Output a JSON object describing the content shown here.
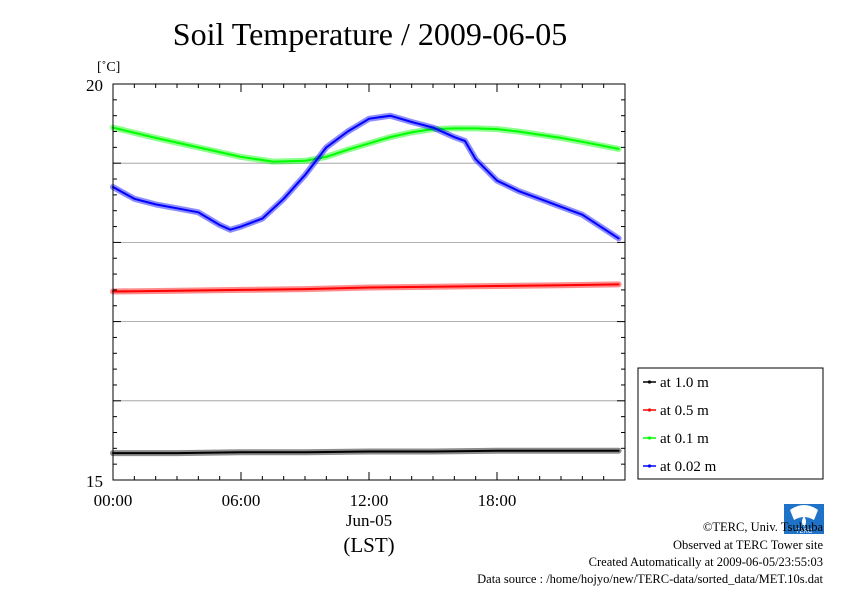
{
  "chart_data": {
    "type": "line",
    "title": "Soil Temperature / 2009-06-05",
    "yunit": "[˚C]",
    "ylim": [
      15,
      20
    ],
    "ytick_labels": [
      "20",
      "15"
    ],
    "yticks_minor": [
      15,
      16,
      17,
      18,
      19,
      20
    ],
    "xlim": [
      0,
      24
    ],
    "xticks": [
      {
        "hour": 0,
        "label": "00:00"
      },
      {
        "hour": 6,
        "label": "06:00"
      },
      {
        "hour": 12,
        "label": "12:00"
      },
      {
        "hour": 18,
        "label": "18:00"
      }
    ],
    "date_label": "Jun-05",
    "xlabel": "(LST)",
    "grid": true,
    "legend_placement": "right",
    "series": [
      {
        "name": "at 1.0 m",
        "color": "#000000",
        "x": [
          0,
          3,
          6,
          9,
          12,
          15,
          18,
          21,
          23.7
        ],
        "y": [
          15.34,
          15.34,
          15.35,
          15.35,
          15.36,
          15.36,
          15.37,
          15.37,
          15.37
        ]
      },
      {
        "name": "at 0.5 m",
        "color": "#ff0000",
        "x": [
          0,
          3,
          6,
          9,
          12,
          15,
          18,
          21,
          23.7
        ],
        "y": [
          17.38,
          17.39,
          17.4,
          17.41,
          17.43,
          17.44,
          17.45,
          17.46,
          17.47
        ]
      },
      {
        "name": "at 0.1 m",
        "color": "#00ff00",
        "x": [
          0,
          2,
          4,
          6,
          7.5,
          9,
          10,
          11,
          12,
          13,
          14,
          15,
          16,
          17,
          18,
          19,
          20,
          21,
          22,
          23.7
        ],
        "y": [
          19.45,
          19.32,
          19.2,
          19.08,
          19.02,
          19.03,
          19.08,
          19.17,
          19.25,
          19.33,
          19.39,
          19.43,
          19.44,
          19.44,
          19.43,
          19.4,
          19.36,
          19.32,
          19.27,
          19.18
        ]
      },
      {
        "name": "at 0.02 m",
        "color": "#0000ff",
        "x": [
          0,
          1,
          2,
          3,
          4,
          5,
          5.5,
          6,
          7,
          8,
          9,
          10,
          11,
          12,
          13,
          14,
          15,
          16,
          16.5,
          17,
          18,
          19,
          20,
          21,
          22,
          23.7
        ],
        "y": [
          18.7,
          18.55,
          18.48,
          18.43,
          18.38,
          18.22,
          18.16,
          18.2,
          18.3,
          18.55,
          18.85,
          19.2,
          19.4,
          19.56,
          19.6,
          19.52,
          19.45,
          19.33,
          19.28,
          19.05,
          18.78,
          18.65,
          18.55,
          18.45,
          18.35,
          18.05
        ]
      }
    ]
  },
  "footer": {
    "copyright": "©TERC, Univ. Tsukuba",
    "site": "Observed at TERC Tower site",
    "created": "Created Automatically at 2009-06-05/23:55:03",
    "source": "Data source : /home/hojyo/new/TERC-data/sorted_data/MET.10s.dat",
    "logo_text": "TERC"
  }
}
